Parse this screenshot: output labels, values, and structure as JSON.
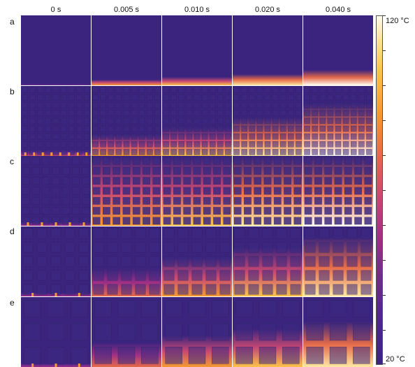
{
  "columns": [
    "0 s",
    "0.005 s",
    "0.010 s",
    "0.020 s",
    "0.040 s"
  ],
  "rows": [
    "a",
    "b",
    "c",
    "d",
    "e"
  ],
  "colorbar": {
    "max_label": "120 °C",
    "min_label": "20 °C",
    "colormap": "plasma/magma (purple→orange→white)"
  }
}
